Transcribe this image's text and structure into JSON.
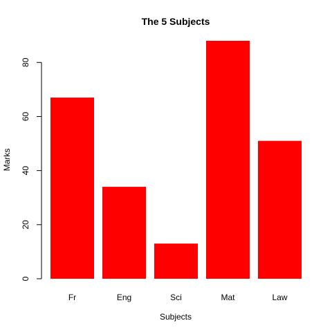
{
  "chart_data": {
    "type": "bar",
    "title": "The 5 Subjects",
    "xlabel": "Subjects",
    "ylabel": "Marks",
    "categories": [
      "Fr",
      "Eng",
      "Sci",
      "Mat",
      "Law"
    ],
    "values": [
      67,
      34,
      13,
      88,
      51
    ],
    "ylim": [
      0,
      88
    ],
    "yticks": [
      0,
      20,
      40,
      60,
      80
    ],
    "bar_color": "#ff0000",
    "grid": false,
    "legend": "none"
  }
}
